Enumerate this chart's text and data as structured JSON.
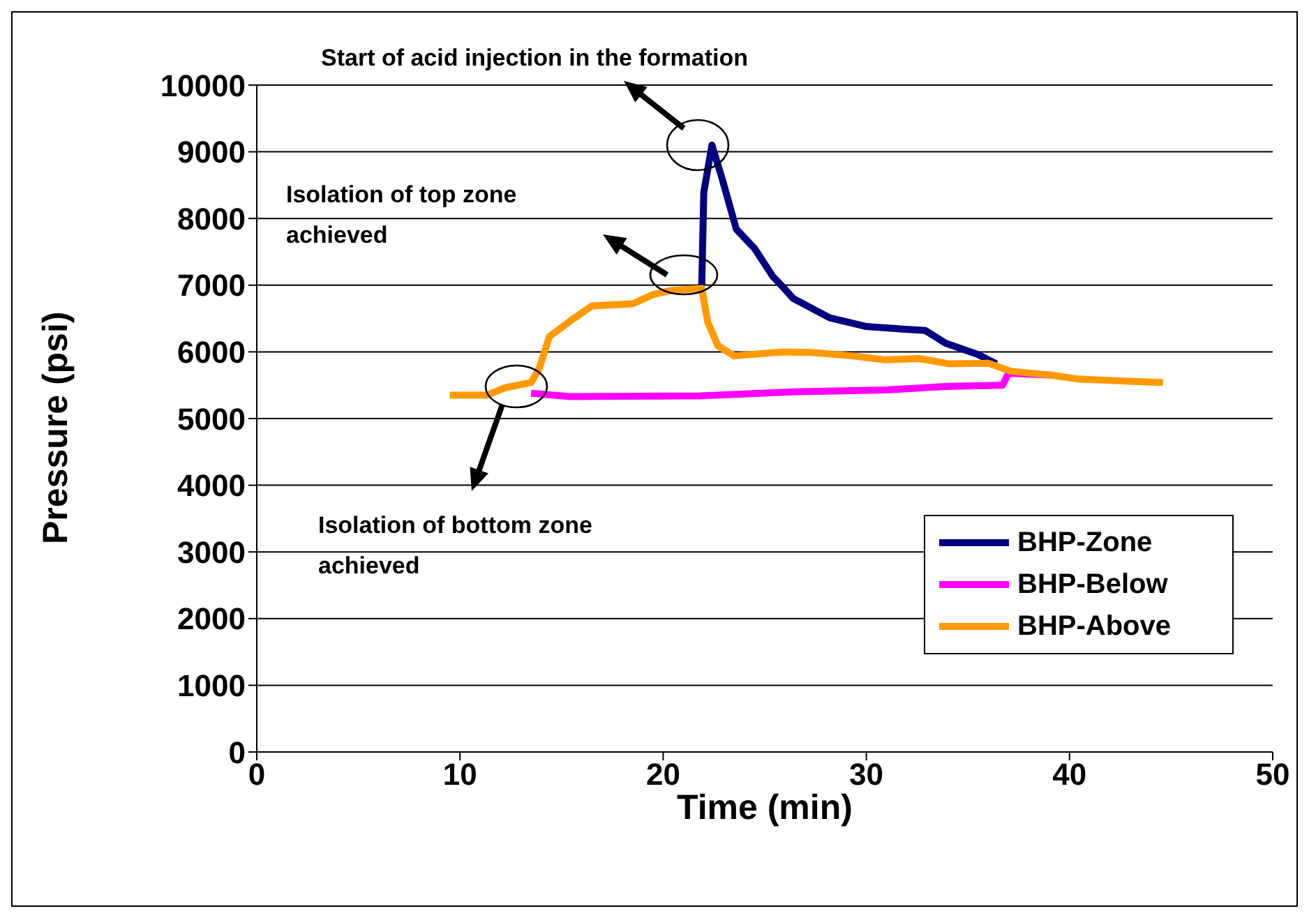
{
  "chart_data": {
    "type": "line",
    "xlabel": "Time (min)",
    "ylabel": "Pressure (psi)",
    "xlim": [
      0,
      50
    ],
    "xticks": [
      0,
      10,
      20,
      30,
      40,
      50
    ],
    "ylim": [
      0,
      10000
    ],
    "yticks": [
      0,
      1000,
      2000,
      3000,
      4000,
      5000,
      6000,
      7000,
      8000,
      9000,
      10000
    ],
    "grid": "y",
    "legend": "bottom right",
    "marker": "none",
    "line_style": "solid",
    "series": [
      {
        "name": "BHP-Zone",
        "color": "#000080",
        "x": [
          21.9,
          22.0,
          22.4,
          22.9,
          23.6,
          24.5,
          25.4,
          25.9,
          26.4,
          28.2,
          30.0,
          31.9,
          32.9,
          33.9,
          35.5,
          36.4
        ],
        "values": [
          7000,
          8390,
          9100,
          8600,
          7840,
          7550,
          7130,
          6970,
          6800,
          6510,
          6380,
          6340,
          6320,
          6130,
          5960,
          5820
        ]
      },
      {
        "name": "BHP-Below",
        "color": "#ff00ff",
        "x": [
          13.5,
          15.4,
          21.8,
          26.4,
          31.0,
          33.9,
          36.7,
          37.0,
          39.1
        ],
        "values": [
          5380,
          5330,
          5340,
          5400,
          5430,
          5480,
          5500,
          5680,
          5650
        ]
      },
      {
        "name": "BHP-Above",
        "color": "#ff9900",
        "x": [
          9.5,
          11.3,
          12.2,
          13.5,
          13.9,
          14.4,
          15.6,
          16.5,
          18.5,
          19.5,
          20.4,
          21.9,
          22.2,
          22.7,
          23.5,
          25.9,
          27.3,
          29.3,
          30.9,
          32.6,
          34.1,
          36.0,
          37.1,
          39.1,
          40.5,
          42.9,
          44.6
        ],
        "values": [
          5350,
          5350,
          5460,
          5540,
          5750,
          6230,
          6500,
          6690,
          6720,
          6860,
          6920,
          6950,
          6440,
          6090,
          5940,
          6000,
          5990,
          5940,
          5880,
          5900,
          5820,
          5830,
          5710,
          5650,
          5590,
          5560,
          5540
        ]
      }
    ],
    "annotations": [
      "Start of acid injection in the formation",
      "Isolation of top zone achieved",
      "Isolation of bottom zone achieved"
    ]
  }
}
